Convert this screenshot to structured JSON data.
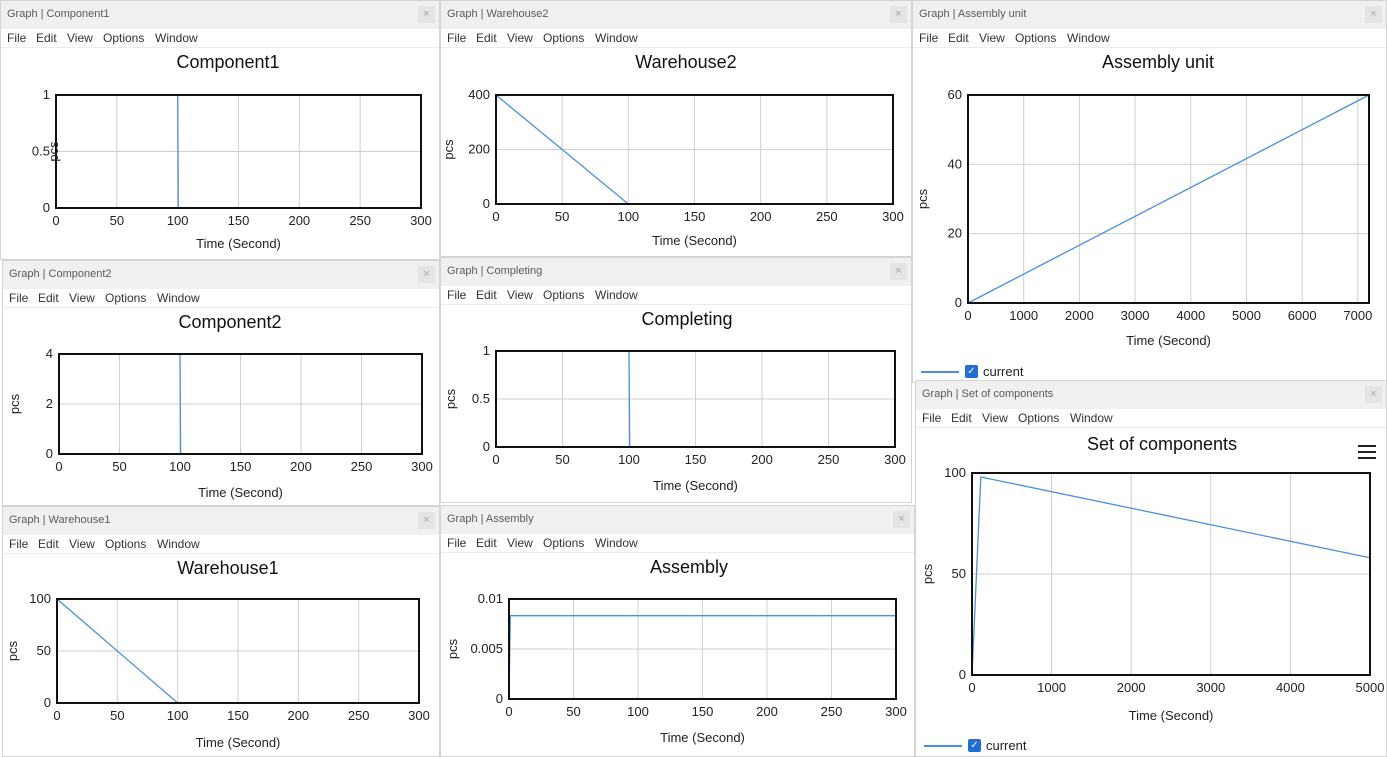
{
  "windows": [
    {
      "id": "w1",
      "window_title": "Graph | Component1",
      "menu": [
        "File",
        "Edit",
        "View",
        "Options",
        "Window"
      ],
      "close_glyph": "×",
      "chart_data": {
        "type": "line",
        "title": "Component1",
        "xlabel": "Time (Second)",
        "ylabel": "pcs",
        "xlim": [
          0,
          300
        ],
        "ylim": [
          0,
          1
        ],
        "xticks": [
          0,
          50,
          100,
          150,
          200,
          250,
          300
        ],
        "yticks": [
          0,
          0.5,
          1
        ],
        "grid": true,
        "series": [
          {
            "x": [
              0,
              100,
              100.5,
              300
            ],
            "y": [
              1,
              1,
              0,
              0
            ],
            "color": "#4a90e2"
          }
        ]
      }
    },
    {
      "id": "w2",
      "window_title": "Graph | Warehouse2",
      "menu": [
        "File",
        "Edit",
        "View",
        "Options",
        "Window"
      ],
      "close_glyph": "×",
      "chart_data": {
        "type": "line",
        "title": "Warehouse2",
        "xlabel": "Time (Second)",
        "ylabel": "pcs",
        "xlim": [
          0,
          300
        ],
        "ylim": [
          0,
          400
        ],
        "xticks": [
          0,
          50,
          100,
          150,
          200,
          250,
          300
        ],
        "yticks": [
          0,
          200,
          400
        ],
        "grid": true,
        "series": [
          {
            "x": [
              0,
              100,
              300
            ],
            "y": [
              400,
              0,
              0
            ],
            "color": "#4a90e2"
          }
        ]
      }
    },
    {
      "id": "w3",
      "window_title": "Graph | Assembly unit",
      "menu": [
        "File",
        "Edit",
        "View",
        "Options",
        "Window"
      ],
      "close_glyph": "×",
      "legend": {
        "label": "current",
        "check": "✓"
      },
      "chart_data": {
        "type": "line",
        "title": "Assembly unit",
        "xlabel": "Time (Second)",
        "ylabel": "pcs",
        "xlim": [
          0,
          7200
        ],
        "ylim": [
          0,
          60
        ],
        "xticks": [
          0,
          1000,
          2000,
          3000,
          4000,
          5000,
          6000,
          7000
        ],
        "yticks": [
          0,
          20,
          40,
          60
        ],
        "grid": true,
        "legend": "bottom-left",
        "series": [
          {
            "name": "current",
            "x": [
              0,
              7200
            ],
            "y": [
              0,
              60
            ],
            "color": "#4a90e2"
          }
        ]
      }
    },
    {
      "id": "w4",
      "window_title": "Graph | Component2",
      "menu": [
        "File",
        "Edit",
        "View",
        "Options",
        "Window"
      ],
      "close_glyph": "×",
      "chart_data": {
        "type": "line",
        "title": "Component2",
        "xlabel": "Time (Second)",
        "ylabel": "pcs",
        "xlim": [
          0,
          300
        ],
        "ylim": [
          0,
          4
        ],
        "xticks": [
          0,
          50,
          100,
          150,
          200,
          250,
          300
        ],
        "yticks": [
          0,
          2,
          4
        ],
        "grid": true,
        "series": [
          {
            "x": [
              0,
              100,
              100.5,
              300
            ],
            "y": [
              4,
              4,
              0,
              0
            ],
            "color": "#4a90e2"
          }
        ]
      }
    },
    {
      "id": "w5",
      "window_title": "Graph | Completing",
      "menu": [
        "File",
        "Edit",
        "View",
        "Options",
        "Window"
      ],
      "close_glyph": "×",
      "chart_data": {
        "type": "line",
        "title": "Completing",
        "xlabel": "Time (Second)",
        "ylabel": "pcs",
        "xlim": [
          0,
          300
        ],
        "ylim": [
          0,
          1
        ],
        "xticks": [
          0,
          50,
          100,
          150,
          200,
          250,
          300
        ],
        "yticks": [
          0,
          0.5,
          1
        ],
        "grid": true,
        "series": [
          {
            "x": [
              0,
              100,
              100.5,
              300
            ],
            "y": [
              1,
              1,
              0,
              0
            ],
            "color": "#4a90e2"
          }
        ]
      }
    },
    {
      "id": "w6",
      "window_title": "Graph | Set of components",
      "menu": [
        "File",
        "Edit",
        "View",
        "Options",
        "Window"
      ],
      "close_glyph": "×",
      "legend": {
        "label": "current",
        "check": "✓"
      },
      "chart_data": {
        "type": "line",
        "title": "Set of components",
        "xlabel": "Time (Second)",
        "ylabel": "pcs",
        "xlim": [
          0,
          5000
        ],
        "ylim": [
          0,
          100
        ],
        "xticks": [
          0,
          1000,
          2000,
          3000,
          4000,
          5000
        ],
        "yticks": [
          0,
          50,
          100
        ],
        "grid": true,
        "legend": "bottom-left",
        "series": [
          {
            "name": "current",
            "x": [
              0,
              110,
              5000
            ],
            "y": [
              0,
              98,
              58
            ],
            "color": "#4a90e2"
          }
        ]
      }
    },
    {
      "id": "w7",
      "window_title": "Graph | Warehouse1",
      "menu": [
        "File",
        "Edit",
        "View",
        "Options",
        "Window"
      ],
      "close_glyph": "×",
      "chart_data": {
        "type": "line",
        "title": "Warehouse1",
        "xlabel": "Time (Second)",
        "ylabel": "pcs",
        "xlim": [
          0,
          300
        ],
        "ylim": [
          0,
          100
        ],
        "xticks": [
          0,
          50,
          100,
          150,
          200,
          250,
          300
        ],
        "yticks": [
          0,
          50,
          100
        ],
        "grid": true,
        "series": [
          {
            "x": [
              0,
              100,
              300
            ],
            "y": [
              100,
              0,
              0
            ],
            "color": "#4a90e2"
          }
        ]
      }
    },
    {
      "id": "w8",
      "window_title": "Graph | Assembly",
      "menu": [
        "File",
        "Edit",
        "View",
        "Options",
        "Window"
      ],
      "close_glyph": "×",
      "chart_data": {
        "type": "line",
        "title": "Assembly",
        "xlabel": "Time (Second)",
        "ylabel": "pcs",
        "xlim": [
          0,
          300
        ],
        "ylim": [
          0,
          0.01
        ],
        "xticks": [
          0,
          50,
          100,
          150,
          200,
          250,
          300
        ],
        "yticks": [
          0,
          0.005,
          0.01
        ],
        "grid": true,
        "series": [
          {
            "x": [
              0,
              1,
              300
            ],
            "y": [
              0,
              0.00833,
              0.00833
            ],
            "color": "#4a90e2"
          }
        ]
      }
    }
  ]
}
